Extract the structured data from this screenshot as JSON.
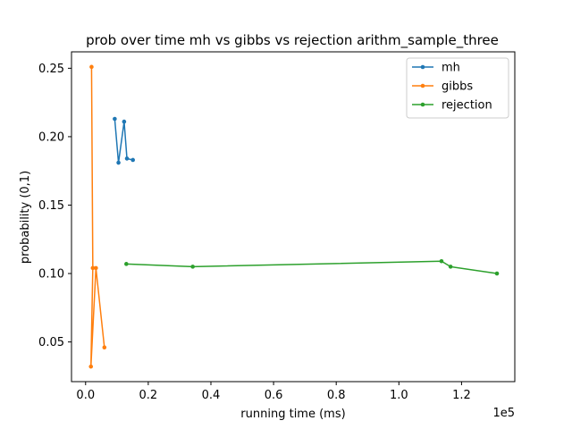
{
  "chart_data": {
    "type": "line",
    "title": "prob over time mh vs gibbs vs rejection arithm_sample_three",
    "xlabel": "running time (ms)",
    "ylabel": "probability (0,1)",
    "x_scale_label": "1e5",
    "xlim": [
      -4500,
      137000
    ],
    "ylim": [
      0.021,
      0.262
    ],
    "x_ticks": [
      0,
      20000,
      40000,
      60000,
      80000,
      100000,
      120000
    ],
    "x_tick_labels": [
      "0.0",
      "0.2",
      "0.4",
      "0.6",
      "0.8",
      "1.0",
      "1.2"
    ],
    "y_ticks": [
      0.05,
      0.1,
      0.15,
      0.2,
      0.25
    ],
    "y_tick_labels": [
      "0.05",
      "0.10",
      "0.15",
      "0.20",
      "0.25"
    ],
    "legend_position": "top-right",
    "series": [
      {
        "name": "mh",
        "color": "#1f77b4",
        "x": [
          9300,
          10500,
          12300,
          13200,
          15100
        ],
        "y": [
          0.213,
          0.181,
          0.211,
          0.184,
          0.183
        ]
      },
      {
        "name": "gibbs",
        "color": "#ff7f0e",
        "x": [
          1900,
          2300,
          1700,
          3300,
          6000
        ],
        "y": [
          0.251,
          0.104,
          0.032,
          0.104,
          0.046
        ]
      },
      {
        "name": "rejection",
        "color": "#2ca02c",
        "x": [
          13000,
          34200,
          113600,
          116500,
          131300
        ],
        "y": [
          0.107,
          0.105,
          0.109,
          0.105,
          0.1
        ]
      }
    ]
  }
}
